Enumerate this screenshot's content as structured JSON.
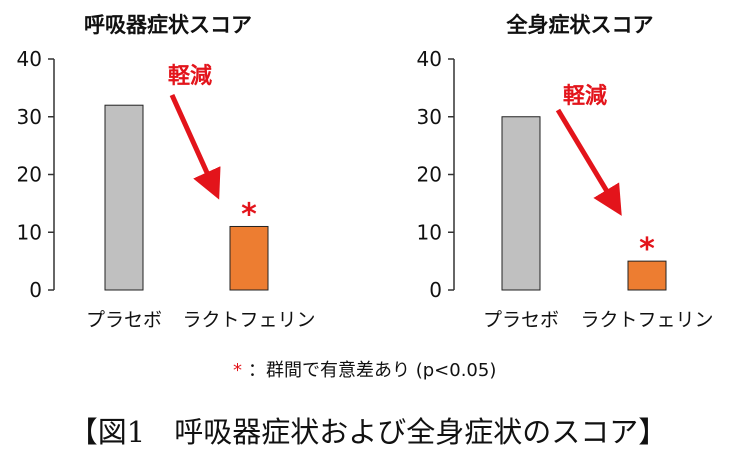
{
  "chart_data": [
    {
      "type": "bar",
      "title": "呼吸器症状スコア",
      "categories": [
        "プラセボ",
        "ラクトフェリン"
      ],
      "values": [
        32,
        11
      ],
      "ylim": [
        0,
        40
      ],
      "yticks": [
        0,
        10,
        20,
        30,
        40
      ],
      "bar_colors": [
        "#c0c0c0",
        "#ed7d31"
      ],
      "annotation": "軽減",
      "significance_mark": "*"
    },
    {
      "type": "bar",
      "title": "全身症状スコア",
      "categories": [
        "プラセボ",
        "ラクトフェリン"
      ],
      "values": [
        30,
        5
      ],
      "ylim": [
        0,
        40
      ],
      "yticks": [
        0,
        10,
        20,
        30,
        40
      ],
      "bar_colors": [
        "#c0c0c0",
        "#ed7d31"
      ],
      "annotation": "軽減",
      "significance_mark": "*"
    }
  ],
  "footnote": {
    "mark": "*",
    "text": "：群間で有意差あり (p<0.05)"
  },
  "caption": "【図1　呼吸器症状および全身症状のスコア】",
  "colors": {
    "arrow": "#e3141b",
    "placebo": "#c0c0c0",
    "lactoferrin": "#ed7d31"
  }
}
